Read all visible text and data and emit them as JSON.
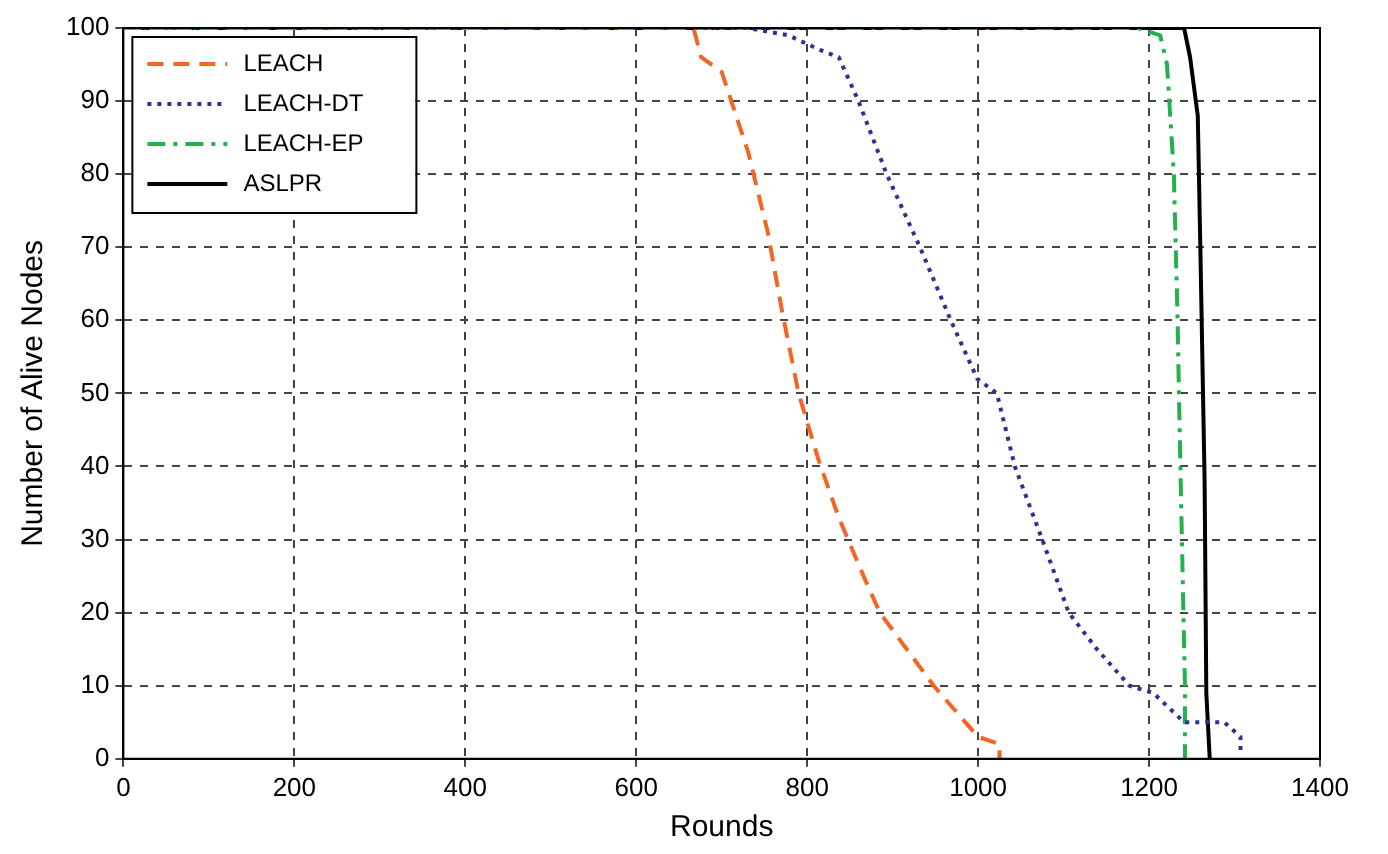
{
  "chart_data": {
    "type": "line",
    "xlabel": "Rounds",
    "ylabel": "Number of Alive Nodes",
    "xlim": [
      0,
      1400
    ],
    "ylim": [
      0,
      100
    ],
    "xticks": [
      0,
      200,
      400,
      600,
      800,
      1000,
      1200,
      1400
    ],
    "yticks": [
      0,
      10,
      20,
      30,
      40,
      50,
      60,
      70,
      80,
      90,
      100
    ],
    "grid": true,
    "legend": "top left",
    "marker": "none",
    "series": [
      {
        "name": "LEACH",
        "color": "#f26522",
        "line_style": "dashed",
        "x": [
          0,
          667,
          676,
          700,
          731,
          754,
          771,
          790,
          813,
          837,
          866,
          885,
          948,
          1000,
          1025,
          1025
        ],
        "values": [
          100,
          100,
          96,
          94,
          83,
          72,
          61,
          50,
          41,
          33,
          25,
          20,
          10,
          3,
          2,
          0
        ]
      },
      {
        "name": "LEACH-DT",
        "color": "#2e3192",
        "line_style": "dotted",
        "x": [
          0,
          730,
          778,
          815,
          837,
          860,
          893,
          932,
          968,
          999,
          1022,
          1043,
          1075,
          1106,
          1139,
          1177,
          1205,
          1241,
          1288,
          1307,
          1307
        ],
        "values": [
          100,
          100,
          99,
          97,
          96,
          90,
          80,
          70,
          60,
          52,
          50,
          40,
          30,
          20,
          15,
          10,
          9,
          5,
          5,
          3,
          1
        ]
      },
      {
        "name": "LEACH-EP",
        "color": "#22b14c",
        "line_style": "dashdot",
        "x": [
          0,
          1186,
          1213,
          1221,
          1229,
          1233,
          1237,
          1242,
          1242
        ],
        "values": [
          100,
          100,
          99,
          95,
          80,
          62,
          38,
          10,
          0
        ]
      },
      {
        "name": "ASLPR",
        "color": "#000000",
        "line_style": "solid",
        "x": [
          0,
          1241,
          1248,
          1257,
          1260,
          1265,
          1267,
          1271
        ],
        "values": [
          100,
          100,
          96,
          88,
          70,
          38,
          9,
          0
        ]
      }
    ]
  }
}
